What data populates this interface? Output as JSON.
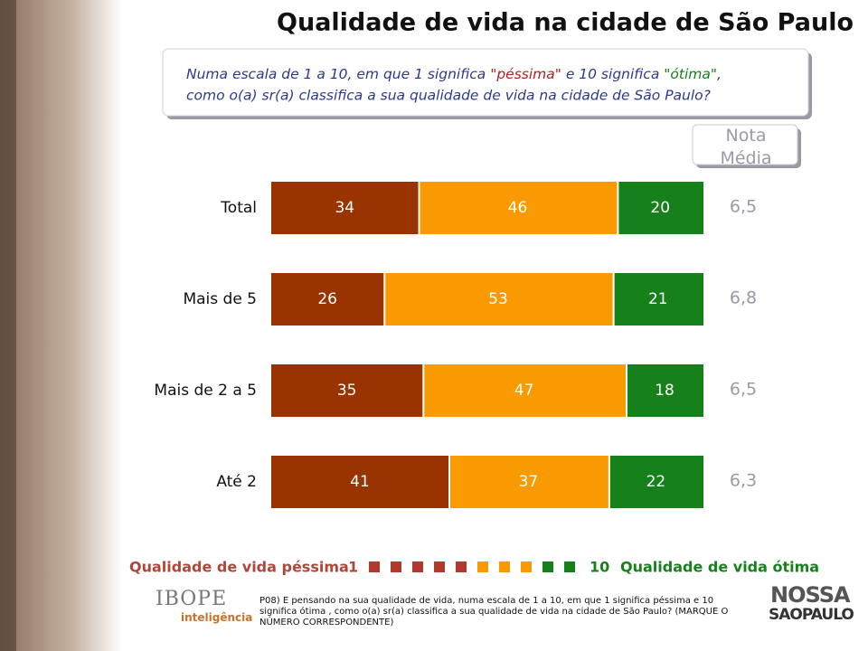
{
  "chart_data": {
    "type": "stacked_bar_horizontal",
    "title": "Qualidade de vida na cidade de São Paulo",
    "question": [
      "Numa escala de 1 a 10, em que 1 significa ",
      "\"péssima\"",
      " e 10 significa ",
      "\"ótima\"",
      ",",
      "como o(a) sr(a) classifica a sua qualidade de vida na cidade de São Paulo?"
    ],
    "categories": [
      "Total",
      "Mais de 5",
      "Mais de 2 a 5",
      "Até 2"
    ],
    "xlim": [
      0,
      100
    ],
    "series": [
      {
        "color": "#993300",
        "values": [
          34,
          26,
          35,
          41
        ]
      },
      {
        "color": "#f99b00",
        "values": [
          46,
          53,
          47,
          37
        ]
      },
      {
        "color": "#16801b",
        "values": [
          20,
          21,
          18,
          22
        ]
      }
    ],
    "nota_media": {
      "title": "Nota Média",
      "values": [
        6.5,
        6.8,
        6.5,
        6.3
      ],
      "value_labels": [
        "6,5",
        "6,8",
        "6,5",
        "6,3"
      ]
    },
    "scale": {
      "low_label": "Qualidade de vida péssima",
      "low": 1,
      "high": 10,
      "high_label": "Qualidade de vida ótima",
      "colors": [
        "#b03a2e",
        "#b03a2e",
        "#b03a2e",
        "#b03a2e",
        "#b03a2e",
        "#f99b00",
        "#f99b00",
        "#f99b00",
        "#16801b",
        "#16801b"
      ]
    },
    "footnote": "P08) E pensando na sua qualidade de vida, numa escala de 1 a 10, em que 1 significa  péssima  e 10 significa  ótima , como o(a) sr(a) classifica a sua qualidade de vida na cidade de São Paulo? (MARQUE O NÚMERO CORRESPONDENTE)",
    "logo_left": [
      "IBOPE",
      "inteligência"
    ],
    "logo_right": [
      "NOSSA",
      "SAOPAULO"
    ]
  }
}
